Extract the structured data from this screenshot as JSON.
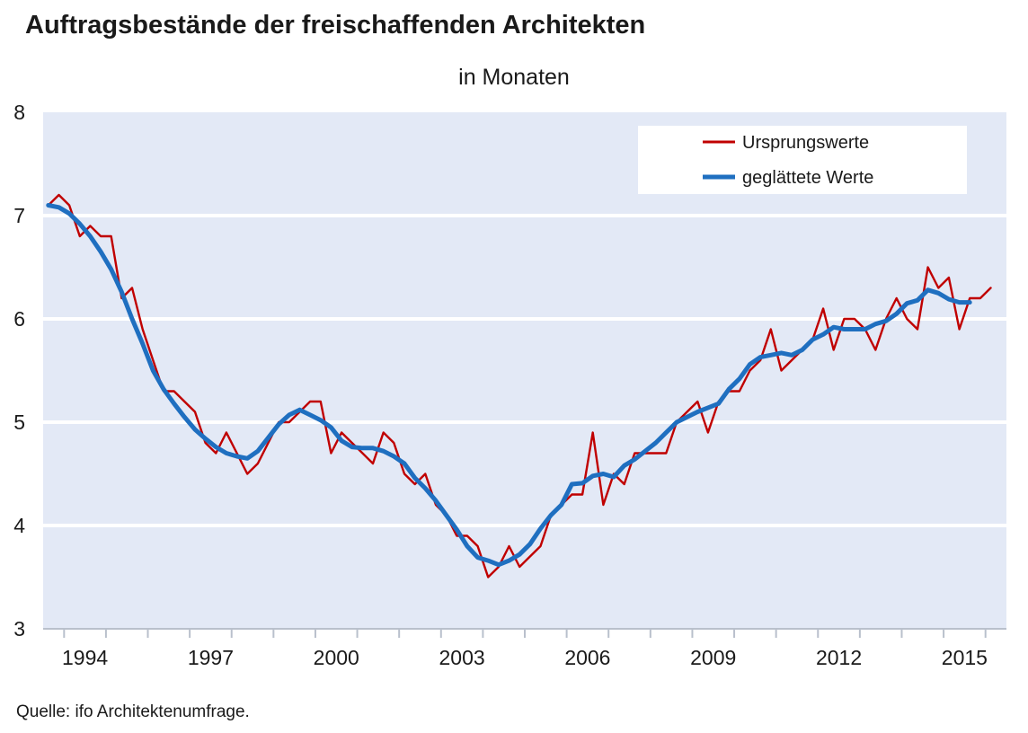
{
  "chart_data": {
    "type": "line",
    "title": "Auftragsbestände der freischaffenden Architekten",
    "subtitle": "in Monaten",
    "source": "Quelle: ifo Architektenumfrage.",
    "ylim": [
      3,
      8
    ],
    "yticks": [
      3,
      4,
      5,
      6,
      7,
      8
    ],
    "xlim": [
      1992.5,
      2015.5
    ],
    "xtick_labels": [
      "1994",
      "1997",
      "2000",
      "2003",
      "2006",
      "2009",
      "2012",
      "2015"
    ],
    "grid": "horizontal",
    "legend_position": "top-right",
    "colors": {
      "plot_background": "#e3e9f6",
      "grid": "#ffffff",
      "axis": "#b9c0cc"
    },
    "series": [
      {
        "name": "Ursprungswerte",
        "color": "#c00000",
        "x": [
          1992.625,
          1992.875,
          1993.125,
          1993.375,
          1993.625,
          1993.875,
          1994.125,
          1994.375,
          1994.625,
          1994.875,
          1995.125,
          1995.375,
          1995.625,
          1995.875,
          1996.125,
          1996.375,
          1996.625,
          1996.875,
          1997.125,
          1997.375,
          1997.625,
          1997.875,
          1998.125,
          1998.375,
          1998.625,
          1998.875,
          1999.125,
          1999.375,
          1999.625,
          1999.875,
          2000.125,
          2000.375,
          2000.625,
          2000.875,
          2001.125,
          2001.375,
          2001.625,
          2001.875,
          2002.125,
          2002.375,
          2002.625,
          2002.875,
          2003.125,
          2003.375,
          2003.625,
          2003.875,
          2004.125,
          2004.375,
          2004.625,
          2004.875,
          2005.125,
          2005.375,
          2005.625,
          2005.875,
          2006.125,
          2006.375,
          2006.625,
          2006.875,
          2007.125,
          2007.375,
          2007.625,
          2007.875,
          2008.125,
          2008.375,
          2008.625,
          2008.875,
          2009.125,
          2009.375,
          2009.625,
          2009.875,
          2010.125,
          2010.375,
          2010.625,
          2010.875,
          2011.125,
          2011.375,
          2011.625,
          2011.875,
          2012.125,
          2012.375,
          2012.625,
          2012.875,
          2013.125,
          2013.375,
          2013.625,
          2013.875,
          2014.125,
          2014.375,
          2014.625,
          2014.875,
          2015.125
        ],
        "values": [
          7.1,
          7.2,
          7.1,
          6.8,
          6.9,
          6.8,
          6.8,
          6.2,
          6.3,
          5.9,
          5.6,
          5.3,
          5.3,
          5.2,
          5.1,
          4.8,
          4.7,
          4.9,
          4.7,
          4.5,
          4.6,
          4.8,
          5.0,
          5.0,
          5.1,
          5.2,
          5.2,
          4.7,
          4.9,
          4.8,
          4.7,
          4.6,
          4.9,
          4.8,
          4.5,
          4.4,
          4.5,
          4.2,
          4.1,
          3.9,
          3.9,
          3.8,
          3.5,
          3.6,
          3.8,
          3.6,
          3.7,
          3.8,
          4.1,
          4.2,
          4.3,
          4.3,
          4.9,
          4.2,
          4.5,
          4.4,
          4.7,
          4.7,
          4.7,
          4.7,
          5.0,
          5.1,
          5.2,
          4.9,
          5.2,
          5.3,
          5.3,
          5.5,
          5.6,
          5.9,
          5.5,
          5.6,
          5.7,
          5.8,
          6.1,
          5.7,
          6.0,
          6.0,
          5.9,
          5.7,
          6.0,
          6.2,
          6.0,
          5.9,
          6.5,
          6.3,
          6.4,
          5.9,
          6.2,
          6.2,
          6.3
        ]
      },
      {
        "name": "geglättete Werte",
        "color": "#1f6fc0",
        "x": [
          1992.625,
          1992.875,
          1993.125,
          1993.375,
          1993.625,
          1993.875,
          1994.125,
          1994.375,
          1994.625,
          1994.875,
          1995.125,
          1995.375,
          1995.625,
          1995.875,
          1996.125,
          1996.375,
          1996.625,
          1996.875,
          1997.125,
          1997.375,
          1997.625,
          1997.875,
          1998.125,
          1998.375,
          1998.625,
          1998.875,
          1999.125,
          1999.375,
          1999.625,
          1999.875,
          2000.125,
          2000.375,
          2000.625,
          2000.875,
          2001.125,
          2001.375,
          2001.625,
          2001.875,
          2002.125,
          2002.375,
          2002.625,
          2002.875,
          2003.125,
          2003.375,
          2003.625,
          2003.875,
          2004.125,
          2004.375,
          2004.625,
          2004.875,
          2005.125,
          2005.375,
          2005.625,
          2005.875,
          2006.125,
          2006.375,
          2006.625,
          2006.875,
          2007.125,
          2007.375,
          2007.625,
          2007.875,
          2008.125,
          2008.375,
          2008.625,
          2008.875,
          2009.125,
          2009.375,
          2009.625,
          2009.875,
          2010.125,
          2010.375,
          2010.625,
          2010.875,
          2011.125,
          2011.375,
          2011.625,
          2011.875,
          2012.125,
          2012.375,
          2012.625,
          2012.875,
          2013.125,
          2013.375,
          2013.625,
          2013.875,
          2014.125,
          2014.375,
          2014.625
        ],
        "values": [
          7.1,
          7.08,
          7.02,
          6.92,
          6.8,
          6.65,
          6.48,
          6.26,
          6.0,
          5.76,
          5.5,
          5.32,
          5.18,
          5.05,
          4.93,
          4.84,
          4.76,
          4.7,
          4.67,
          4.65,
          4.72,
          4.85,
          4.98,
          5.07,
          5.12,
          5.07,
          5.02,
          4.95,
          4.82,
          4.76,
          4.75,
          4.75,
          4.72,
          4.67,
          4.6,
          4.46,
          4.36,
          4.24,
          4.1,
          3.96,
          3.8,
          3.69,
          3.66,
          3.62,
          3.66,
          3.72,
          3.82,
          3.97,
          4.1,
          4.2,
          4.4,
          4.41,
          4.48,
          4.5,
          4.47,
          4.58,
          4.64,
          4.72,
          4.8,
          4.9,
          5.0,
          5.05,
          5.1,
          5.14,
          5.18,
          5.32,
          5.42,
          5.56,
          5.63,
          5.65,
          5.67,
          5.65,
          5.7,
          5.8,
          5.85,
          5.92,
          5.9,
          5.9,
          5.9,
          5.95,
          5.98,
          6.05,
          6.15,
          6.18,
          6.28,
          6.25,
          6.19,
          6.16,
          6.16
        ]
      }
    ]
  }
}
